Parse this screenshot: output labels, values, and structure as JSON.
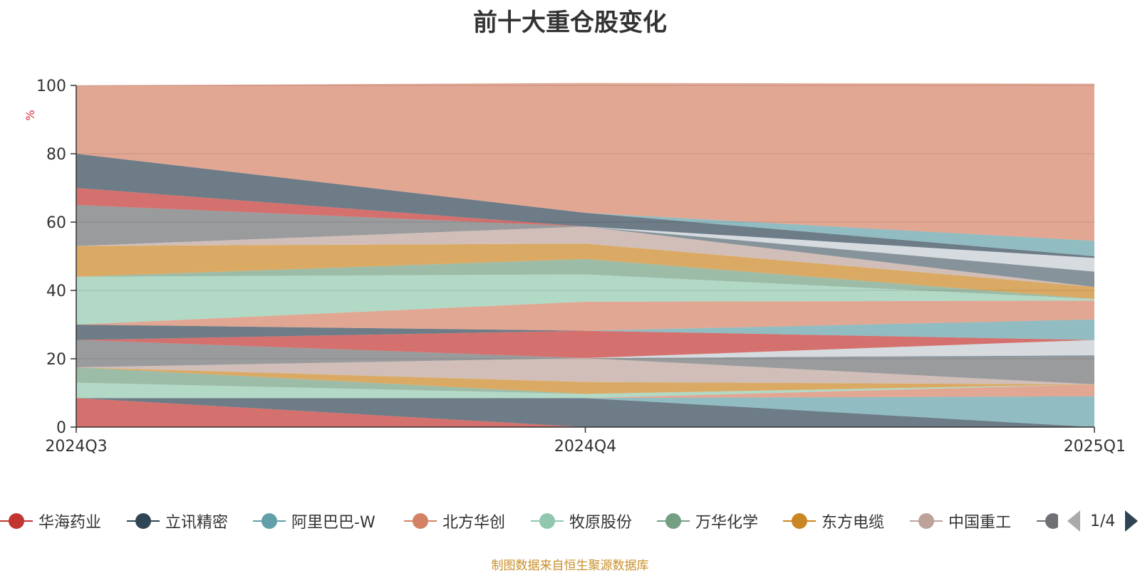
{
  "title": "前十大重仓股变化",
  "footer": "制图数据来自恒生聚源数据库",
  "pager": {
    "text": "1/4"
  },
  "chart_data": {
    "type": "area",
    "stacked": true,
    "categories": [
      "2024Q3",
      "2024Q4",
      "2025Q1"
    ],
    "ylabel": "%",
    "ylim": [
      0,
      100
    ],
    "yticks": [
      0,
      20,
      40,
      60,
      80,
      100
    ],
    "grid": true,
    "legend_position": "bottom",
    "series": [
      {
        "name": "华海药业",
        "color": "#c23531",
        "values": [
          8.5,
          0,
          0
        ]
      },
      {
        "name": "立讯精密",
        "color": "#2f4554",
        "values": [
          0,
          8.5,
          0
        ]
      },
      {
        "name": "阿里巴巴-W",
        "color": "#61a0a8",
        "values": [
          0,
          0,
          9
        ]
      },
      {
        "name": "北方华创",
        "color": "#d48265",
        "values": [
          0,
          0,
          3.5
        ]
      },
      {
        "name": "牧原股份",
        "color": "#91c7ae",
        "values": [
          4.5,
          1.2,
          0
        ]
      },
      {
        "name": "万华化学",
        "color": "#749f83",
        "values": [
          4.5,
          0,
          0
        ]
      },
      {
        "name": "东方电缆",
        "color": "#ca8622",
        "values": [
          0,
          3.5,
          0
        ]
      },
      {
        "name": "中国重工",
        "color": "#bda29a",
        "values": [
          0,
          7,
          0
        ]
      },
      {
        "name": "",
        "color": "#6e7074",
        "values": [
          0,
          0,
          8
        ]
      },
      {
        "name": "",
        "color": "#546570",
        "values": [
          0,
          0,
          0.5
        ]
      },
      {
        "name": "",
        "color": "#c4ccd3",
        "values": [
          0,
          0,
          4.5
        ]
      },
      {
        "name": "",
        "color": "#6e7074",
        "values": [
          8,
          0,
          0
        ]
      },
      {
        "name": "",
        "color": "#c23531",
        "values": [
          0,
          8,
          0
        ]
      },
      {
        "name": "",
        "color": "#61a0a8",
        "values": [
          0,
          0,
          6
        ]
      },
      {
        "name": "",
        "color": "#2f4554",
        "values": [
          4.5,
          0,
          0
        ]
      },
      {
        "name": "",
        "color": "#d48265",
        "values": [
          0,
          8.5,
          5.5
        ]
      },
      {
        "name": "",
        "color": "#91c7ae",
        "values": [
          14,
          8,
          0.5
        ]
      },
      {
        "name": "",
        "color": "#749f83",
        "values": [
          0,
          4.5,
          0
        ]
      },
      {
        "name": "",
        "color": "#ca8622",
        "values": [
          9,
          4.5,
          3.5
        ]
      },
      {
        "name": "",
        "color": "#bda29a",
        "values": [
          0,
          5,
          0
        ]
      },
      {
        "name": "",
        "color": "#6e7074",
        "values": [
          12,
          0,
          0
        ]
      },
      {
        "name": "",
        "color": "#546570",
        "values": [
          0,
          0,
          4.5
        ]
      },
      {
        "name": "",
        "color": "#c4ccd3",
        "values": [
          0,
          0,
          4
        ]
      },
      {
        "name": "",
        "color": "#c23531",
        "values": [
          5,
          0,
          0
        ]
      },
      {
        "name": "",
        "color": "#2f4554",
        "values": [
          10,
          4,
          0.5
        ]
      },
      {
        "name": "",
        "color": "#61a0a8",
        "values": [
          0,
          0,
          4.5
        ]
      },
      {
        "name": "",
        "color": "#d48265",
        "values": [
          20,
          38,
          46
        ]
      }
    ]
  }
}
